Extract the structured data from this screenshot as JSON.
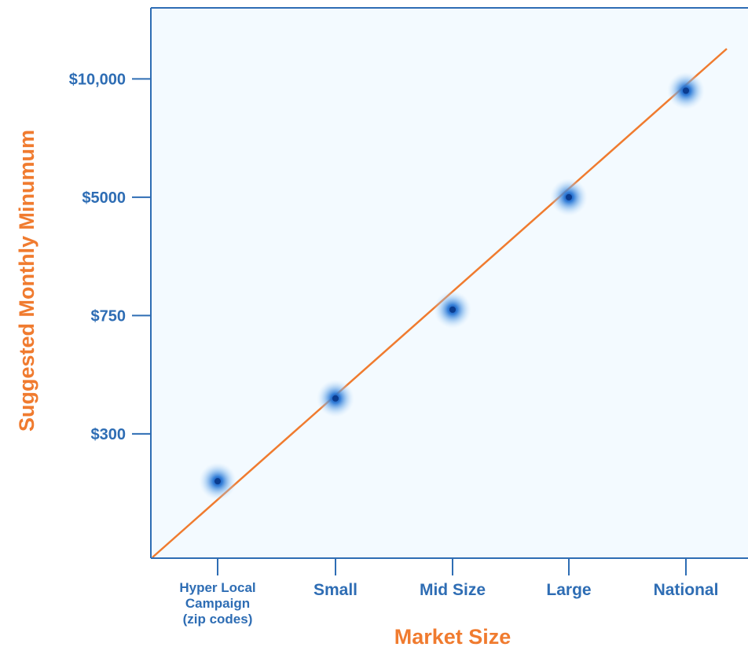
{
  "colors": {
    "plot_background": "#f3faff",
    "axis": "#2e6db4",
    "tick_label": "#2e6db4",
    "axis_title": "#f07b2f",
    "trend_line": "#f07b2f",
    "point": "#1f5fbf"
  },
  "chart_data": {
    "type": "scatter",
    "title": "",
    "xlabel": "Market Size",
    "ylabel": "Suggested Monthly Minumum",
    "x_categories": [
      [
        "Hyper Local",
        "Campaign",
        "(zip codes)"
      ],
      [
        "Small"
      ],
      [
        "Mid Size"
      ],
      [
        "Large"
      ],
      [
        "National"
      ]
    ],
    "y_tick_labels": [
      "$10,000",
      "$5000",
      "$750",
      "$300"
    ],
    "y_tick_levels": [
      4,
      3,
      2,
      1
    ],
    "ylim": [
      -0.05,
      4.6
    ],
    "points": [
      {
        "x": "Hyper Local Campaign (zip codes)",
        "level": 0.6
      },
      {
        "x": "Small",
        "level": 1.3
      },
      {
        "x": "Mid Size",
        "level": 2.05
      },
      {
        "x": "Large",
        "level": 3.0
      },
      {
        "x": "National",
        "level": 3.9
      }
    ],
    "trend_line": true,
    "grid": false,
    "legend": "none"
  }
}
